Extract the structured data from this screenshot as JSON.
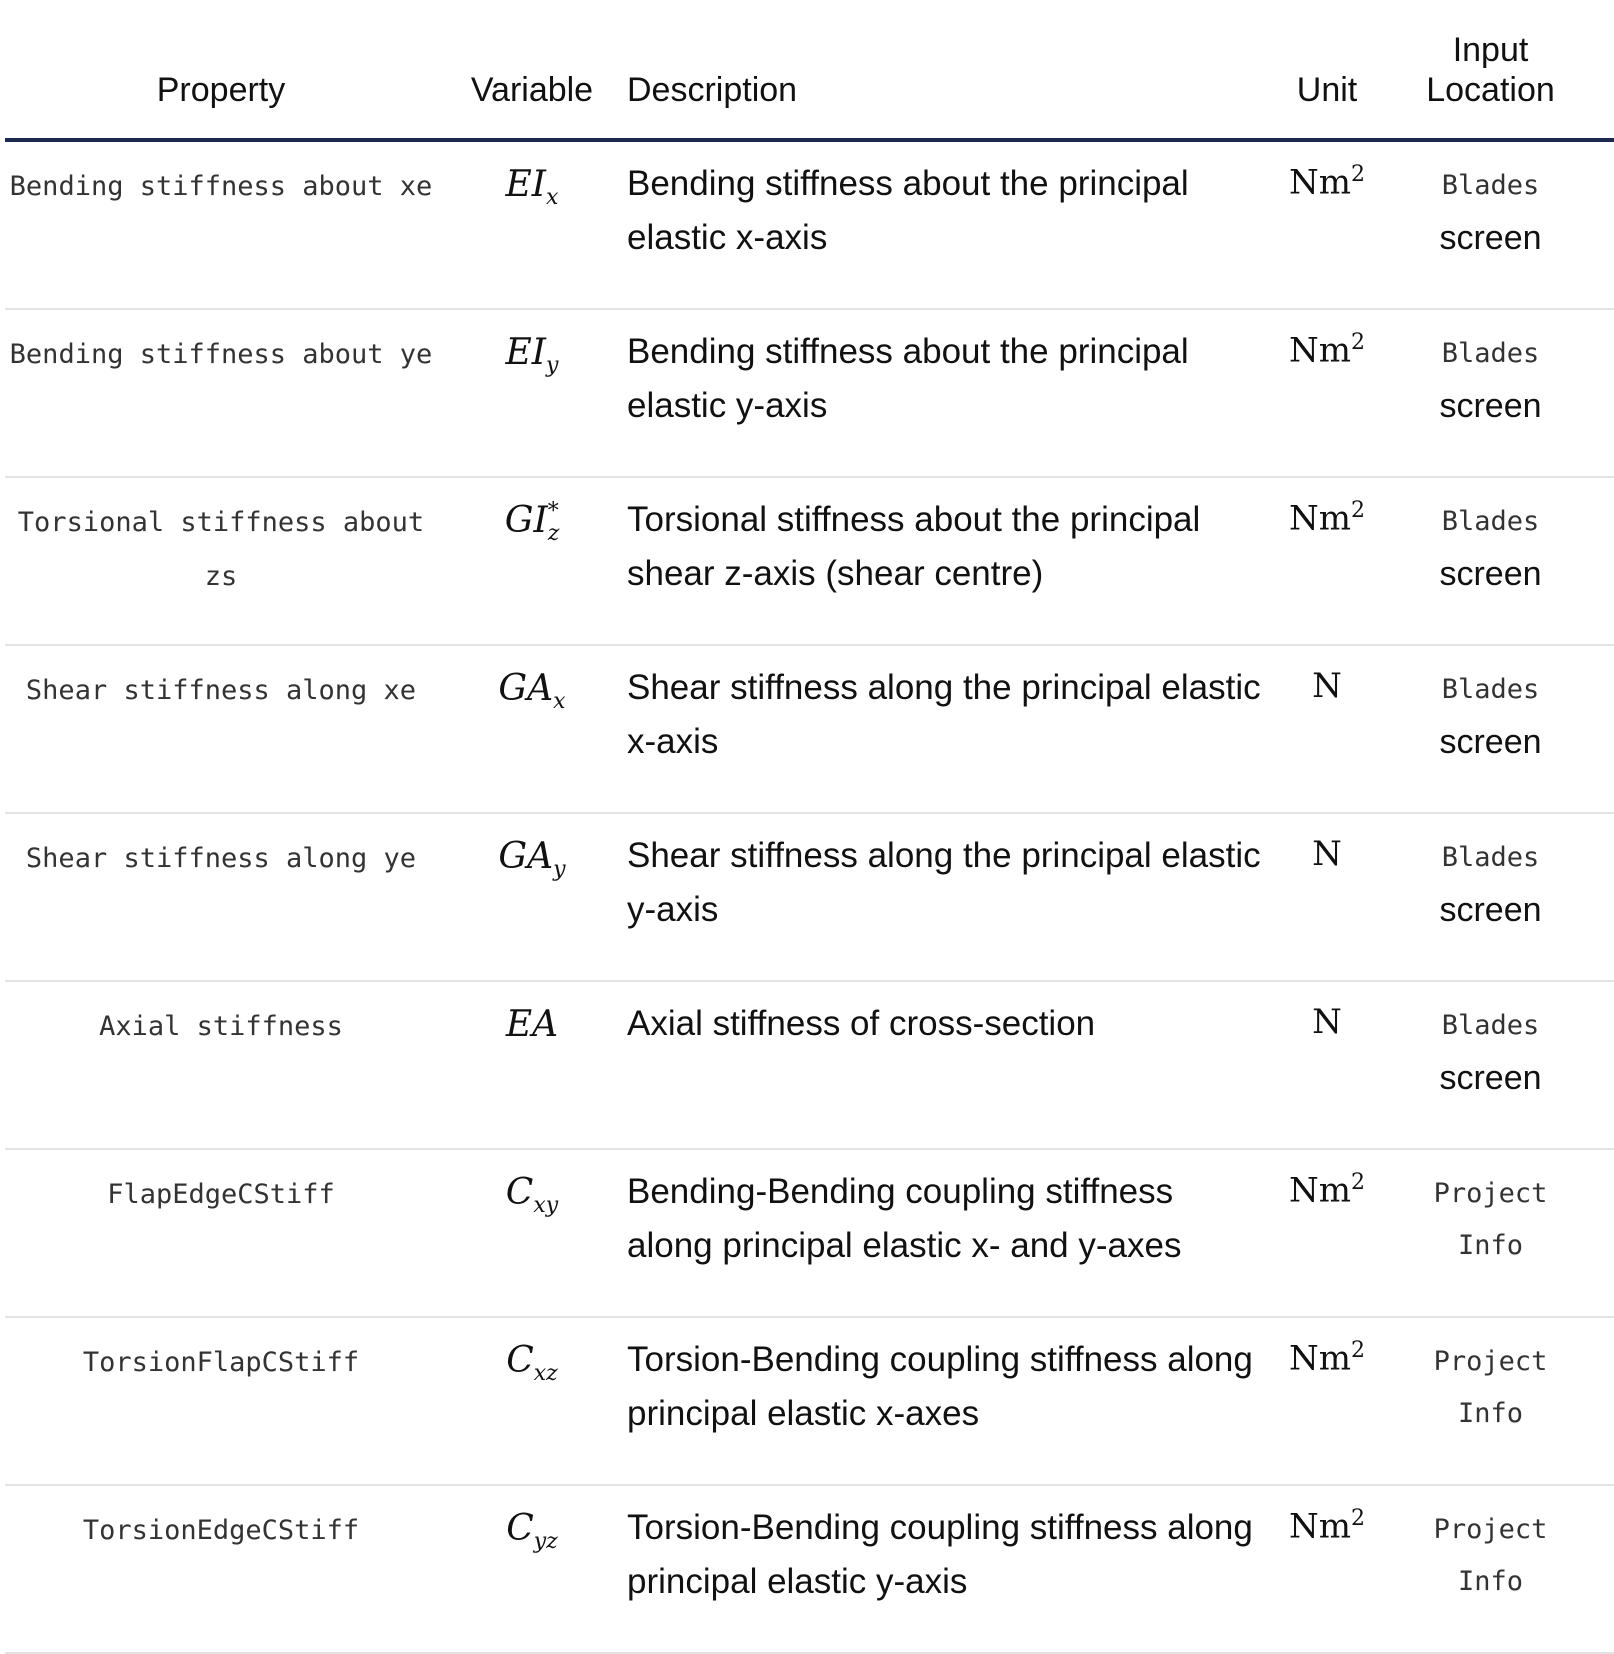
{
  "headers": {
    "property": "Property",
    "variable": "Variable",
    "description": "Description",
    "unit": "Unit",
    "location_line1": "Input",
    "location_line2": "Location"
  },
  "rows": [
    {
      "property": "Bending stiffness about xe",
      "var_base": "EI",
      "var_sub": "x",
      "var_sup": "",
      "description": "Bending stiffness about the principal elastic x-axis",
      "unit_base": "Nm",
      "unit_sup": "2",
      "loc1": "Blades",
      "loc2": "screen"
    },
    {
      "property": "Bending stiffness about ye",
      "var_base": "EI",
      "var_sub": "y",
      "var_sup": "",
      "description": "Bending stiffness about the principal elastic y-axis",
      "unit_base": "Nm",
      "unit_sup": "2",
      "loc1": "Blades",
      "loc2": "screen"
    },
    {
      "property": "Torsional stiffness about zs",
      "var_base": "GI",
      "var_sub": "z",
      "var_sup": "*",
      "description": "Torsional stiffness about the principal shear z-axis (shear centre)",
      "unit_base": "Nm",
      "unit_sup": "2",
      "loc1": "Blades",
      "loc2": "screen"
    },
    {
      "property": "Shear stiffness along xe",
      "var_base": "GA",
      "var_sub": "x",
      "var_sup": "",
      "description": "Shear stiffness along the principal elastic x-axis",
      "unit_base": "N",
      "unit_sup": "",
      "loc1": "Blades",
      "loc2": "screen"
    },
    {
      "property": "Shear stiffness along ye",
      "var_base": "GA",
      "var_sub": "y",
      "var_sup": "",
      "description": "Shear stiffness along the principal elastic y-axis",
      "unit_base": "N",
      "unit_sup": "",
      "loc1": "Blades",
      "loc2": "screen"
    },
    {
      "property": "Axial stiffness",
      "var_base": "EA",
      "var_sub": "",
      "var_sup": "",
      "description": "Axial stiffness of cross-section",
      "unit_base": "N",
      "unit_sup": "",
      "loc1": "Blades",
      "loc2": "screen"
    },
    {
      "property": "FlapEdgeCStiff",
      "var_base": "C",
      "var_sub": "xy",
      "var_sup": "",
      "description": "Bending-Bending coupling stiffness along principal elastic x- and y-axes",
      "unit_base": "Nm",
      "unit_sup": "2",
      "loc1": "Project",
      "loc2": "Info"
    },
    {
      "property": "TorsionFlapCStiff",
      "var_base": "C",
      "var_sub": "xz",
      "var_sup": "",
      "description": "Torsion-Bending coupling stiffness along principal elastic x-axes",
      "unit_base": "Nm",
      "unit_sup": "2",
      "loc1": "Project",
      "loc2": "Info"
    },
    {
      "property": "TorsionEdgeCStiff",
      "var_base": "C",
      "var_sub": "yz",
      "var_sup": "",
      "description": "Torsion-Bending coupling stiffness along principal elastic y-axis",
      "unit_base": "Nm",
      "unit_sup": "2",
      "loc1": "Project",
      "loc2": "Info"
    }
  ]
}
